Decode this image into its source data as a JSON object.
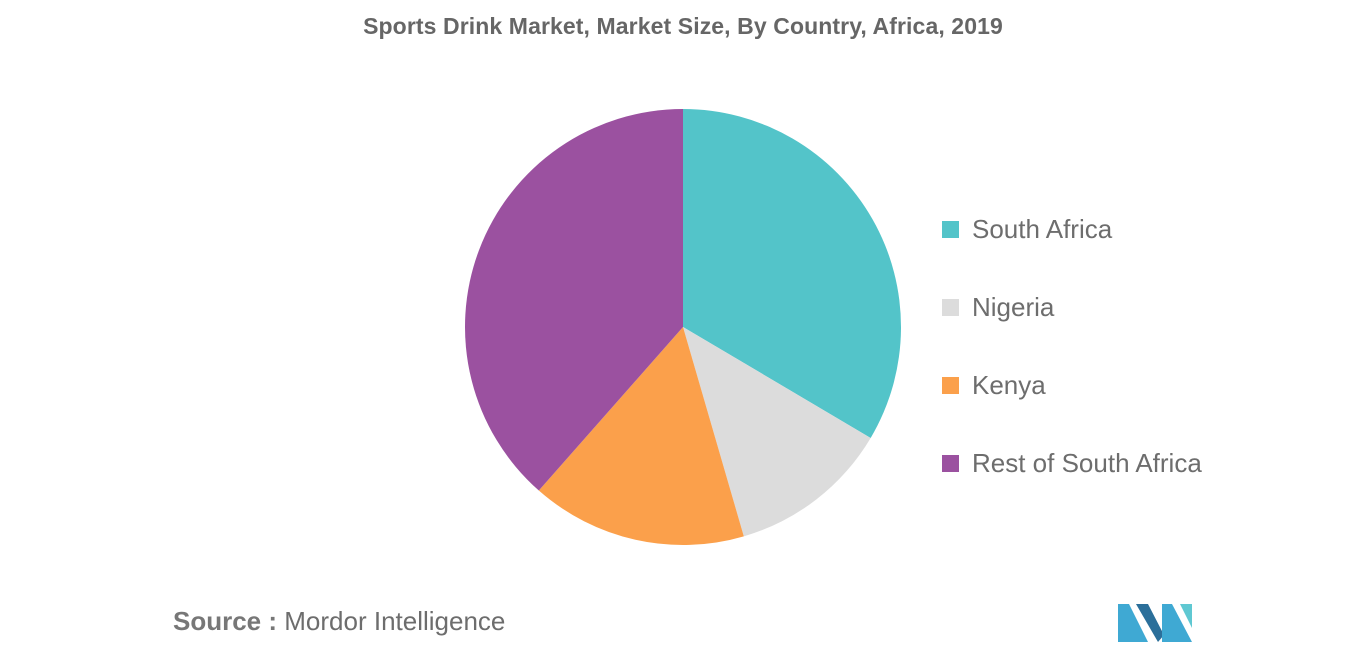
{
  "chart_data": {
    "type": "pie",
    "title": "Sports Drink Market, Market Size, By Country, Africa, 2019",
    "categories": [
      "South Africa",
      "Nigeria",
      "Kenya",
      "Rest of South Africa"
    ],
    "values": [
      33.5,
      12.0,
      16.0,
      38.5
    ],
    "unit": "%",
    "colors": [
      "#53c4c9",
      "#dcdcdc",
      "#fba04b",
      "#9b51a0"
    ],
    "start_angle_deg": 0,
    "direction": "clockwise",
    "legend_position": "right"
  },
  "source": {
    "label": "Source :",
    "text": "Mordor Intelligence"
  },
  "logo": {
    "name": "mordor-intelligence-logo",
    "colors": [
      "#2b6f9a",
      "#3fa9d3",
      "#5fc8d2"
    ]
  }
}
